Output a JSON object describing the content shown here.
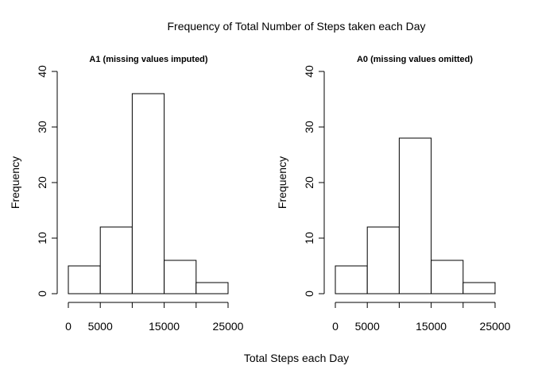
{
  "figure": {
    "title": "Frequency of Total Number of Steps taken each Day",
    "xlabel": "Total Steps each Day"
  },
  "chart_data": [
    {
      "type": "bar",
      "title": "A1 (missing values imputed)",
      "ylabel": "Frequency",
      "bins": [
        [
          0,
          5000
        ],
        [
          5000,
          10000
        ],
        [
          10000,
          15000
        ],
        [
          15000,
          20000
        ],
        [
          20000,
          25000
        ]
      ],
      "values": [
        5,
        12,
        36,
        6,
        2
      ],
      "xlim": [
        0,
        25000
      ],
      "ylim": [
        0,
        40
      ],
      "x_ticks": [
        0,
        5000,
        10000,
        15000,
        20000,
        25000
      ],
      "x_tick_labels": [
        "0",
        "5000",
        "",
        "15000",
        "",
        "25000"
      ],
      "y_ticks": [
        0,
        10,
        20,
        30,
        40
      ],
      "y_tick_labels": [
        "0",
        "10",
        "20",
        "30",
        "40"
      ],
      "grid": false
    },
    {
      "type": "bar",
      "title": "A0 (missing values omitted)",
      "ylabel": "Frequency",
      "bins": [
        [
          0,
          5000
        ],
        [
          5000,
          10000
        ],
        [
          10000,
          15000
        ],
        [
          15000,
          20000
        ],
        [
          20000,
          25000
        ]
      ],
      "values": [
        5,
        12,
        28,
        6,
        2
      ],
      "xlim": [
        0,
        25000
      ],
      "ylim": [
        0,
        40
      ],
      "x_ticks": [
        0,
        5000,
        10000,
        15000,
        20000,
        25000
      ],
      "x_tick_labels": [
        "0",
        "5000",
        "",
        "15000",
        "",
        "25000"
      ],
      "y_ticks": [
        0,
        10,
        20,
        30,
        40
      ],
      "y_tick_labels": [
        "0",
        "10",
        "20",
        "30",
        "40"
      ],
      "grid": false
    }
  ]
}
